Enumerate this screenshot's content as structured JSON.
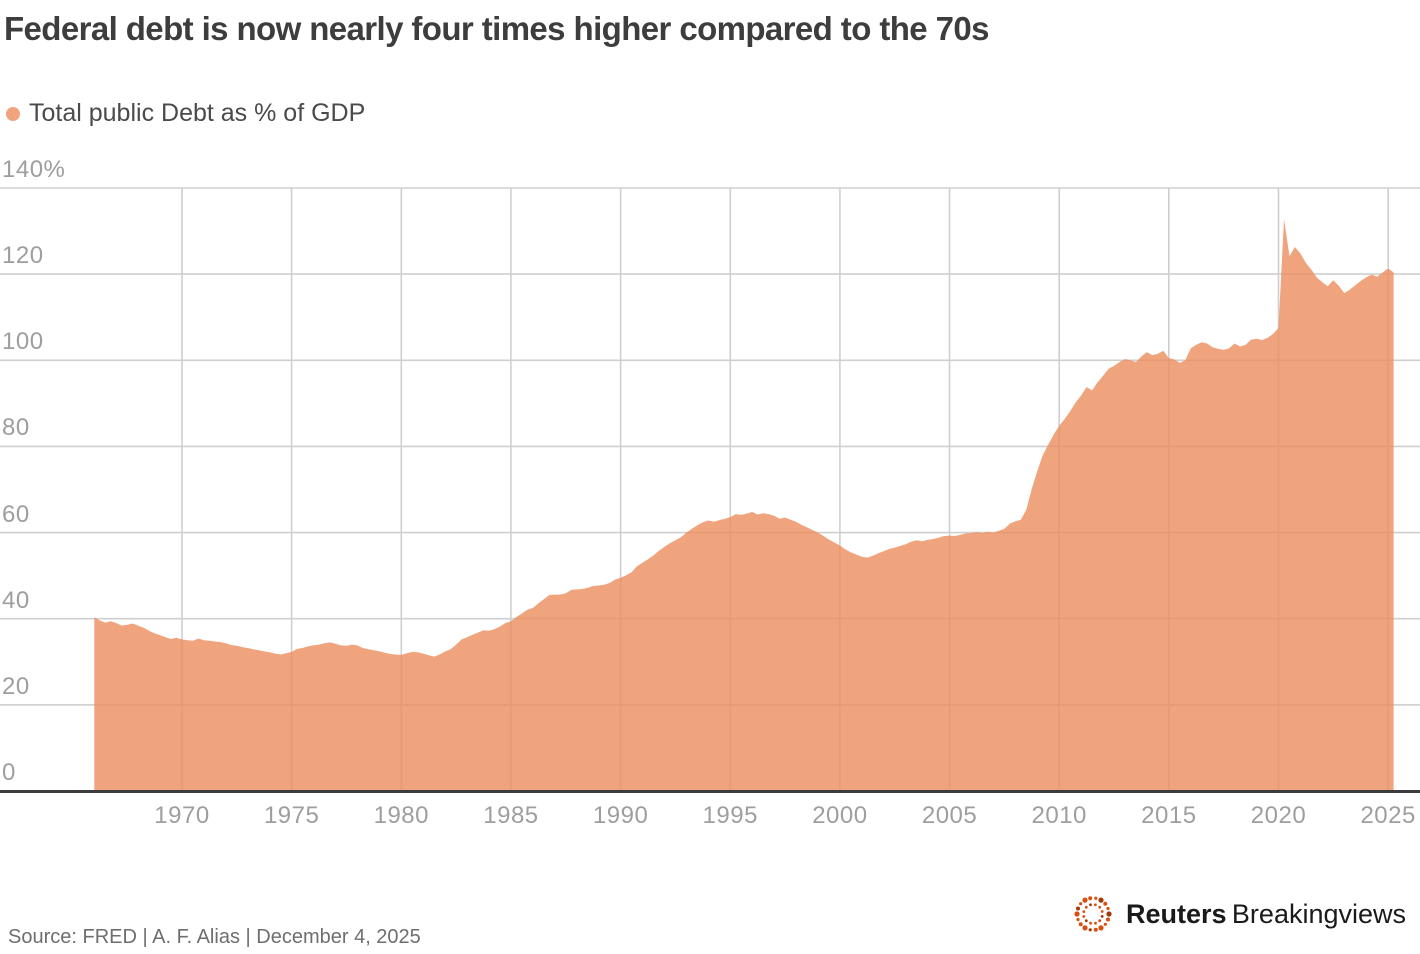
{
  "title": "Federal debt is now nearly four times higher compared to the 70s",
  "legend": {
    "label": "Total public Debt as % of GDP"
  },
  "footer": {
    "source_line": "Source: FRED | A. F. Alias | December 4, 2025",
    "brand_bold": "Reuters",
    "brand_regular": "Breakingviews"
  },
  "colors": {
    "area_solid": "#f0a47e",
    "area_overlay": "rgba(236,141,94,0.8)",
    "gridline": "#cfcfcf",
    "axis_line": "#3c3c3c",
    "tick_text": "#9e9e9e",
    "title_text": "#3d3d3d",
    "legend_text": "#4a4a4a",
    "source_text": "#6e6e6e",
    "logo_orange": "#d94f10",
    "logo_dark_orange": "#a23a03",
    "logo_text": "#1a1a1a"
  },
  "chart_data": {
    "type": "area",
    "title": "Federal debt is now nearly four times higher compared to the 70s",
    "series_name": "Total public Debt as % of GDP",
    "xlabel": "",
    "ylabel": "Debt as % of GDP",
    "ylim": [
      0,
      140
    ],
    "x_start": 1966.0,
    "x_step": 0.25,
    "x_end": 2025.25,
    "grid": true,
    "legend_position": "top-left",
    "y_ticks": [
      {
        "v": 140,
        "label": "140%"
      },
      {
        "v": 120,
        "label": "120"
      },
      {
        "v": 100,
        "label": "100"
      },
      {
        "v": 80,
        "label": "80"
      },
      {
        "v": 60,
        "label": "60"
      },
      {
        "v": 40,
        "label": "40"
      },
      {
        "v": 20,
        "label": "20"
      },
      {
        "v": 0,
        "label": "0"
      }
    ],
    "x_ticks": [
      {
        "v": 1970,
        "label": "1970"
      },
      {
        "v": 1975,
        "label": "1975"
      },
      {
        "v": 1980,
        "label": "1980"
      },
      {
        "v": 1985,
        "label": "1985"
      },
      {
        "v": 1990,
        "label": "1990"
      },
      {
        "v": 1995,
        "label": "1995"
      },
      {
        "v": 2000,
        "label": "2000"
      },
      {
        "v": 2005,
        "label": "2005"
      },
      {
        "v": 2010,
        "label": "2010"
      },
      {
        "v": 2015,
        "label": "2015"
      },
      {
        "v": 2020,
        "label": "2020"
      },
      {
        "v": 2025,
        "label": "2025"
      }
    ],
    "values": [
      40.3,
      39.6,
      39.1,
      39.4,
      39.0,
      38.4,
      38.6,
      38.9,
      38.4,
      37.9,
      37.2,
      36.6,
      36.2,
      35.7,
      35.3,
      35.6,
      35.2,
      35.0,
      34.9,
      35.4,
      35.0,
      34.9,
      34.7,
      34.6,
      34.3,
      33.9,
      33.7,
      33.4,
      33.2,
      32.9,
      32.7,
      32.4,
      32.2,
      31.9,
      31.7,
      32.0,
      32.3,
      33.0,
      33.2,
      33.6,
      33.8,
      34.0,
      34.3,
      34.5,
      34.2,
      33.8,
      33.7,
      34.0,
      33.8,
      33.2,
      32.9,
      32.7,
      32.4,
      32.1,
      31.8,
      31.7,
      31.6,
      32.0,
      32.3,
      32.2,
      31.9,
      31.5,
      31.2,
      31.7,
      32.4,
      32.9,
      34.0,
      35.2,
      35.7,
      36.3,
      36.8,
      37.3,
      37.2,
      37.6,
      38.2,
      39.0,
      39.4,
      40.4,
      41.2,
      42.1,
      42.5,
      43.6,
      44.5,
      45.5,
      45.6,
      45.6,
      45.9,
      46.7,
      46.8,
      46.9,
      47.2,
      47.6,
      47.7,
      47.9,
      48.3,
      49.1,
      49.5,
      50.1,
      50.8,
      52.2,
      53.0,
      53.8,
      54.7,
      55.8,
      56.7,
      57.5,
      58.2,
      58.9,
      60.0,
      60.9,
      61.7,
      62.4,
      62.8,
      62.5,
      62.9,
      63.2,
      63.6,
      64.3,
      64.1,
      64.4,
      64.8,
      64.2,
      64.5,
      64.3,
      63.9,
      63.2,
      63.5,
      63.0,
      62.5,
      61.8,
      61.2,
      60.6,
      60.0,
      59.2,
      58.4,
      57.7,
      57.0,
      56.1,
      55.4,
      54.9,
      54.4,
      54.2,
      54.6,
      55.2,
      55.7,
      56.2,
      56.5,
      56.9,
      57.3,
      57.9,
      58.2,
      58.0,
      58.3,
      58.5,
      58.8,
      59.2,
      59.3,
      59.2,
      59.5,
      59.8,
      59.9,
      60.1,
      59.9,
      60.2,
      60.0,
      60.4,
      60.9,
      62.1,
      62.6,
      63.0,
      65.3,
      70.2,
      74.3,
      78.0,
      80.4,
      82.8,
      84.8,
      86.4,
      88.2,
      90.2,
      91.8,
      93.8,
      93.0,
      94.9,
      96.4,
      98.0,
      98.7,
      99.6,
      100.3,
      100.0,
      99.6,
      100.9,
      101.9,
      101.2,
      101.5,
      102.2,
      100.5,
      100.2,
      99.4,
      100.0,
      102.8,
      103.6,
      104.2,
      103.9,
      103.0,
      102.7,
      102.4,
      102.8,
      103.9,
      103.2,
      103.6,
      104.8,
      105.0,
      104.7,
      105.2,
      106.1,
      107.5,
      132.8,
      124.2,
      126.3,
      124.8,
      122.6,
      121.0,
      119.2,
      118.1,
      117.2,
      118.6,
      117.3,
      115.6,
      116.4,
      117.4,
      118.4,
      119.3,
      119.9,
      119.4,
      120.4,
      121.3,
      120.4
    ]
  }
}
